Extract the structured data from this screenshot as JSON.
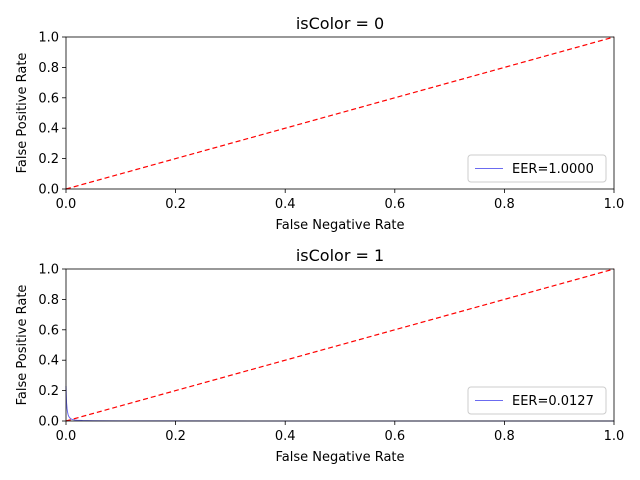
{
  "chart_data": [
    {
      "type": "line",
      "title": "isColor = 0",
      "xlabel": "False Negative Rate",
      "ylabel": "False Positive Rate",
      "xlim": [
        0,
        1
      ],
      "ylim": [
        0,
        1
      ],
      "xticks": [
        "0.0",
        "0.2",
        "0.4",
        "0.6",
        "0.8",
        "1.0"
      ],
      "yticks": [
        "0.0",
        "0.2",
        "0.4",
        "0.6",
        "0.8",
        "1.0"
      ],
      "grid": false,
      "legend_position": "lower-right",
      "series": [
        {
          "name": "EER=1.0000",
          "color": "#6b6bf0",
          "x": [],
          "y": []
        }
      ],
      "reference_line": {
        "x": [
          0,
          1
        ],
        "y": [
          0,
          1
        ],
        "color": "#ff0000",
        "style": "dashed"
      }
    },
    {
      "type": "line",
      "title": "isColor = 1",
      "xlabel": "False Negative Rate",
      "ylabel": "False Positive Rate",
      "xlim": [
        0,
        1
      ],
      "ylim": [
        0,
        1
      ],
      "xticks": [
        "0.0",
        "0.2",
        "0.4",
        "0.6",
        "0.8",
        "1.0"
      ],
      "yticks": [
        "0.0",
        "0.2",
        "0.4",
        "0.6",
        "0.8",
        "1.0"
      ],
      "grid": false,
      "legend_position": "lower-right",
      "series": [
        {
          "name": "EER=0.0127",
          "color": "#6b6bf0",
          "x": [
            0.0,
            0.0005,
            0.001,
            0.002,
            0.003,
            0.004,
            0.005,
            0.007,
            0.01,
            0.015,
            0.02,
            0.03,
            0.05,
            0.1,
            0.2,
            0.4,
            0.6,
            0.8,
            1.0
          ],
          "y": [
            0.23,
            0.17,
            0.12,
            0.08,
            0.055,
            0.04,
            0.03,
            0.02,
            0.012,
            0.007,
            0.005,
            0.003,
            0.002,
            0.001,
            0.0005,
            0.0002,
            0.0001,
            0.0,
            0.0
          ]
        }
      ],
      "reference_line": {
        "x": [
          0,
          1
        ],
        "y": [
          0,
          1
        ],
        "color": "#ff0000",
        "style": "dashed"
      }
    }
  ]
}
